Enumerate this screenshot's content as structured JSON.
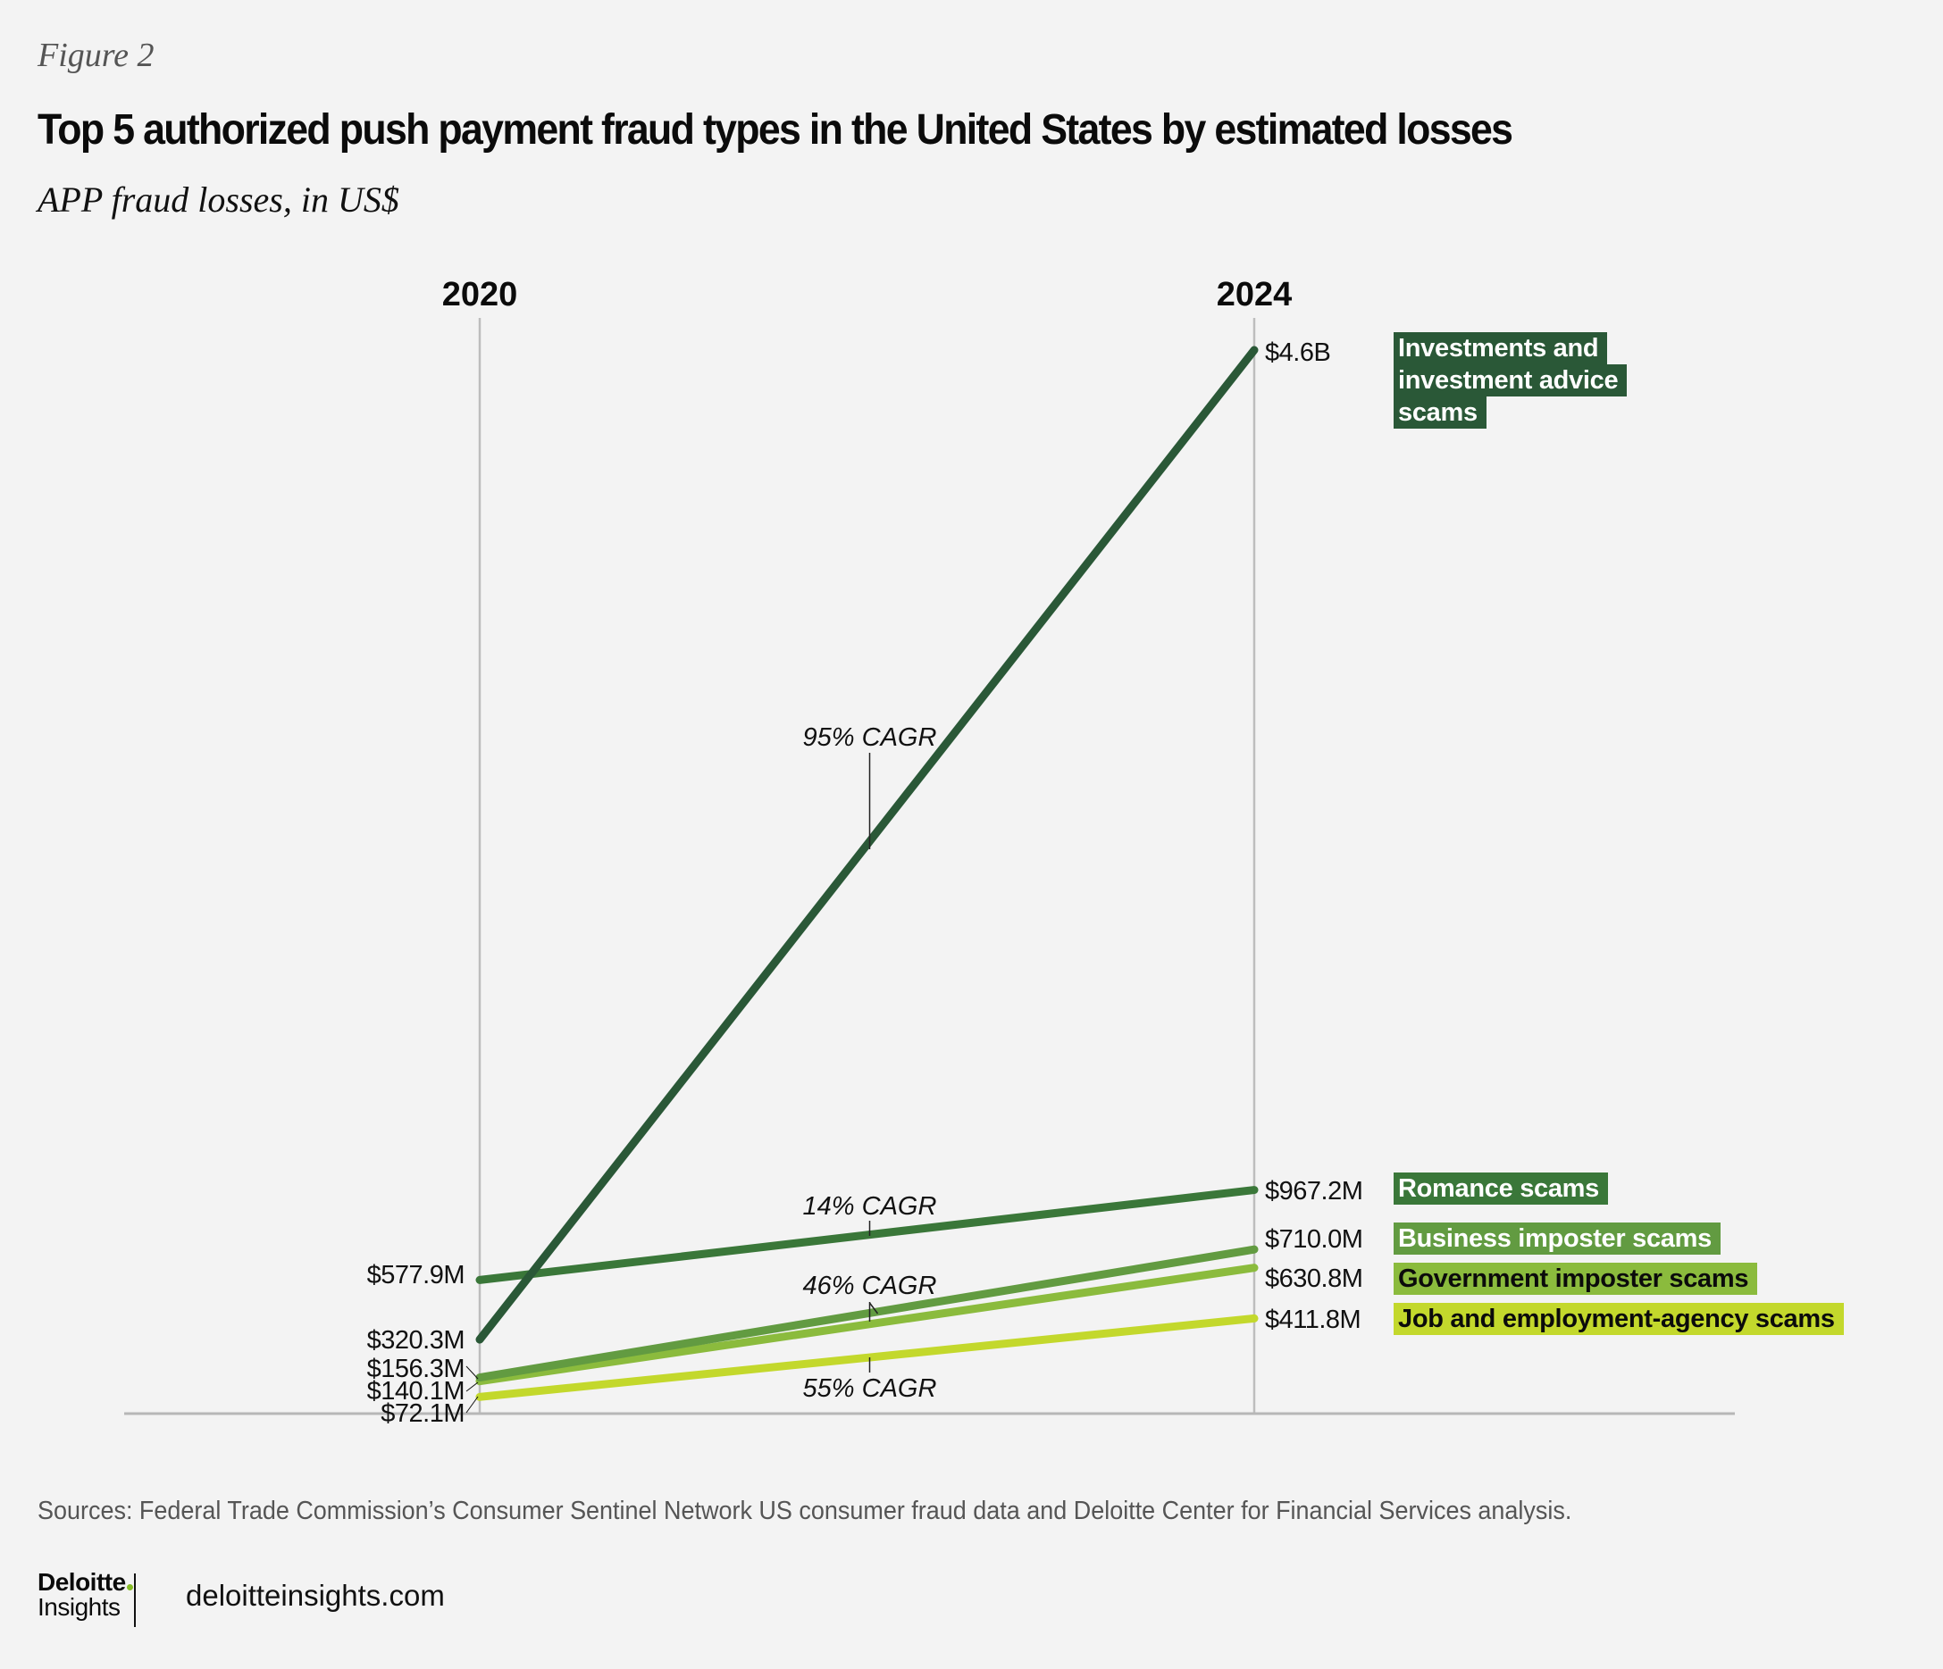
{
  "header": {
    "figure_label": "Figure 2",
    "title": "Top 5 authorized push payment fraud types in the United States by estimated losses",
    "subtitle": "APP fraud losses, in US$"
  },
  "chart_data": {
    "type": "line",
    "title": "Top 5 authorized push payment fraud types in the United States by estimated losses",
    "subtitle": "APP fraud losses, in US$",
    "x": [
      "2020",
      "2024"
    ],
    "xlabel": "",
    "ylabel": "APP fraud losses, in US$",
    "units": "US$ millions",
    "ylim": [
      0,
      4650
    ],
    "grid": false,
    "legend_placement": "right (inline labels)",
    "series": [
      {
        "name": "Investments and investment advice scams",
        "values": [
          320.3,
          4600
        ],
        "labels": [
          "$320.3M",
          "$4.6B"
        ],
        "cagr": "95% CAGR",
        "color": "#2a5837",
        "text_color": "#ffffff"
      },
      {
        "name": "Romance scams",
        "values": [
          577.9,
          967.2
        ],
        "labels": [
          "$577.9M",
          "$967.2M"
        ],
        "cagr": "14% CAGR",
        "color": "#3a7739",
        "text_color": "#ffffff"
      },
      {
        "name": "Business imposter scams",
        "values": [
          156.3,
          710.0
        ],
        "labels": [
          "$156.3M",
          "$710.0M"
        ],
        "cagr": "46% CAGR",
        "color": "#629b41",
        "text_color": "#ffffff"
      },
      {
        "name": "Government imposter scams",
        "values": [
          140.1,
          630.8
        ],
        "labels": [
          "$140.1M",
          "$630.8M"
        ],
        "cagr": "46% CAGR",
        "color": "#8bbb3d",
        "text_color": "#0b0b0b"
      },
      {
        "name": "Job and employment-agency scams",
        "values": [
          72.1,
          411.8
        ],
        "labels": [
          "$72.1M",
          "$411.8M"
        ],
        "cagr": "55% CAGR",
        "color": "#c3d82c",
        "text_color": "#0b0b0b"
      }
    ],
    "annotations": [
      "95% CAGR",
      "14% CAGR",
      "46% CAGR",
      "55% CAGR"
    ]
  },
  "footer": {
    "sources": "Sources: Federal Trade Commission’s Consumer Sentinel Network US consumer fraud data and Deloitte Center for Financial Services analysis.",
    "logo_top": "Deloitte",
    "logo_bottom": "Insights",
    "site": "deloitteinsights.com",
    "brand_dot_color": "#86bc25"
  }
}
